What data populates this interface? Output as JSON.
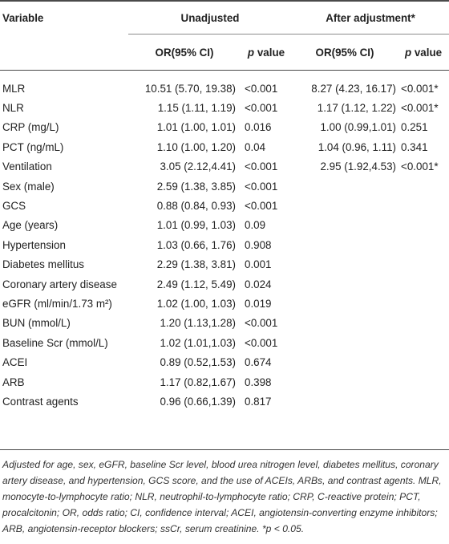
{
  "headers": {
    "variable": "Variable",
    "unadjusted": "Unadjusted",
    "adjusted": "After adjustment*",
    "or_ci": "OR(95% CI)",
    "p_value_italic": "p",
    "p_value_rest": " value"
  },
  "rows": [
    {
      "variable": "MLR",
      "or_u": "10.51 (5.70, 19.38)",
      "p_u": "<0.001",
      "or_a": "8.27 (4.23, 16.17)",
      "p_a": "<0.001*"
    },
    {
      "variable": "NLR",
      "or_u": "1.15 (1.11, 1.19)",
      "p_u": "<0.001",
      "or_a": "1.17 (1.12, 1.22)",
      "p_a": "<0.001*"
    },
    {
      "variable": "CRP (mg/L)",
      "or_u": "1.01 (1.00, 1.01)",
      "p_u": "0.016",
      "or_a": "1.00 (0.99,1.01)",
      "p_a": "0.251"
    },
    {
      "variable": "PCT (ng/mL)",
      "or_u": "1.10 (1.00, 1.20)",
      "p_u": "0.04",
      "or_a": "1.04 (0.96, 1.11)",
      "p_a": "0.341"
    },
    {
      "variable": "Ventilation",
      "or_u": "3.05 (2.12,4.41)",
      "p_u": "<0.001",
      "or_a": "2.95 (1.92,4.53)",
      "p_a": "<0.001*"
    },
    {
      "variable": "Sex (male)",
      "or_u": "2.59 (1.38, 3.85)",
      "p_u": "<0.001",
      "or_a": "",
      "p_a": ""
    },
    {
      "variable": "GCS",
      "or_u": "0.88 (0.84, 0.93)",
      "p_u": "<0.001",
      "or_a": "",
      "p_a": ""
    },
    {
      "variable": "Age (years)",
      "or_u": "1.01 (0.99, 1.03)",
      "p_u": "0.09",
      "or_a": "",
      "p_a": ""
    },
    {
      "variable": "Hypertension",
      "or_u": "1.03 (0.66, 1.76)",
      "p_u": "0.908",
      "or_a": "",
      "p_a": ""
    },
    {
      "variable": "Diabetes mellitus",
      "or_u": "2.29 (1.38, 3.81)",
      "p_u": "0.001",
      "or_a": "",
      "p_a": ""
    },
    {
      "variable": "Coronary artery disease",
      "or_u": "2.49 (1.12, 5.49)",
      "p_u": "0.024",
      "or_a": "",
      "p_a": ""
    },
    {
      "variable": "eGFR (ml/min/1.73 m²)",
      "or_u": "1.02 (1.00, 1.03)",
      "p_u": "0.019",
      "or_a": "",
      "p_a": ""
    },
    {
      "variable": "BUN (mmol/L)",
      "or_u": "1.20 (1.13,1.28)",
      "p_u": "<0.001",
      "or_a": "",
      "p_a": ""
    },
    {
      "variable": "Baseline Scr (mmol/L)",
      "or_u": "1.02 (1.01,1.03)",
      "p_u": "<0.001",
      "or_a": "",
      "p_a": ""
    },
    {
      "variable": "ACEI",
      "or_u": "0.89 (0.52,1.53)",
      "p_u": "0.674",
      "or_a": "",
      "p_a": ""
    },
    {
      "variable": "ARB",
      "or_u": "1.17 (0.82,1.67)",
      "p_u": "0.398",
      "or_a": "",
      "p_a": ""
    },
    {
      "variable": "Contrast agents",
      "or_u": "0.96 (0.66,1.39)",
      "p_u": "0.817",
      "or_a": "",
      "p_a": ""
    }
  ],
  "footnote": "Adjusted for age, sex, eGFR, baseline Scr level, blood urea nitrogen level, diabetes mellitus, coronary artery disease, and hypertension, GCS score, and the use of ACEIs, ARBs, and contrast agents. MLR, monocyte-to-lymphocyte ratio; NLR, neutrophil-to-lymphocyte ratio; CRP, C-reactive protein; PCT, procalcitonin; OR, odds ratio; CI, confidence interval; ACEI, angiotensin-converting enzyme inhibitors; ARB, angiotensin-receptor blockers; ssCr, serum creatinine. *p < 0.05."
}
